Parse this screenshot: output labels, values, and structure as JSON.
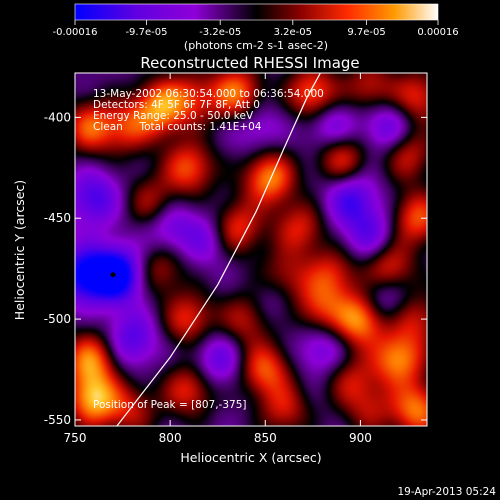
{
  "chart_data": {
    "type": "heatmap",
    "title": "Reconstructed RHESSI Image",
    "xlabel": "Heliocentric X (arcsec)",
    "ylabel": "Heliocentric Y (arcsec)",
    "xlim": [
      750,
      935
    ],
    "ylim": [
      -553,
      -378
    ],
    "x_ticks": [
      "750",
      "800",
      "850",
      "900"
    ],
    "x_tick_values": [
      750,
      800,
      850,
      900
    ],
    "y_ticks": [
      "-400",
      "-450",
      "-500",
      "-550"
    ],
    "y_tick_values": [
      -400,
      -450,
      -500,
      -550
    ],
    "colorbar": {
      "range": [
        -0.00016,
        0.00016
      ],
      "tick_labels": [
        "-0.00016",
        "-9.7e-05",
        "-3.2e-05",
        "3.2e-05",
        "9.7e-05",
        "0.00016"
      ],
      "tick_values": [
        -0.00016,
        -9.7e-05,
        -3.2e-05,
        3.2e-05,
        9.7e-05,
        0.00016
      ],
      "unit_label": "(photons cm-2 s-1 asec-2)",
      "colors": [
        "#0000ff",
        "#8f00d8",
        "#000000",
        "#8a0000",
        "#ff2a00",
        "#ff9a00",
        "#ffffff"
      ]
    },
    "annotations": [
      "13-May-2002 06:30:54.000 to 06:36:54.000",
      "Detectors: 4F 5F 6F 7F 8F, Att 0",
      "Energy Range: 25.0 - 50.0 keV",
      "Clean     Total counts: 1.41E+04",
      "Position of Peak = [807,-375]"
    ],
    "footer": "19-Apr-2013 05:24",
    "limb_curve": [
      [
        772,
        -553
      ],
      [
        800,
        -519
      ],
      [
        825,
        -483
      ],
      [
        845,
        -447
      ],
      [
        860,
        -415
      ],
      [
        872,
        -390
      ],
      [
        879,
        -378
      ]
    ],
    "marker": [
      770,
      -478
    ],
    "blobs": [
      [
        758,
        -405,
        0.7
      ],
      [
        778,
        -405,
        0.55
      ],
      [
        795,
        -395,
        0.85
      ],
      [
        812,
        -390,
        0.5
      ],
      [
        835,
        -388,
        0.8
      ],
      [
        875,
        -388,
        0.75
      ],
      [
        905,
        -385,
        0.5
      ],
      [
        930,
        -390,
        0.6
      ],
      [
        810,
        -425,
        0.7
      ],
      [
        852,
        -430,
        0.85
      ],
      [
        890,
        -420,
        0.65
      ],
      [
        925,
        -418,
        0.55
      ],
      [
        760,
        -440,
        -0.55
      ],
      [
        790,
        -442,
        0.45
      ],
      [
        835,
        -455,
        0.65
      ],
      [
        868,
        -455,
        0.55
      ],
      [
        930,
        -450,
        0.7
      ],
      [
        860,
        -480,
        0.5
      ],
      [
        885,
        -478,
        0.55
      ],
      [
        915,
        -475,
        0.65
      ],
      [
        795,
        -475,
        0.45
      ],
      [
        810,
        -500,
        0.6
      ],
      [
        840,
        -500,
        0.5
      ],
      [
        878,
        -495,
        0.55
      ],
      [
        900,
        -500,
        0.95
      ],
      [
        930,
        -500,
        0.5
      ],
      [
        772,
        -478,
        -1.0
      ],
      [
        755,
        -478,
        -0.8
      ],
      [
        758,
        -520,
        0.8
      ],
      [
        760,
        -540,
        0.95
      ],
      [
        780,
        -545,
        0.45
      ],
      [
        810,
        -535,
        0.6
      ],
      [
        850,
        -525,
        0.7
      ],
      [
        860,
        -545,
        0.5
      ],
      [
        895,
        -530,
        0.45
      ],
      [
        920,
        -520,
        0.85
      ],
      [
        930,
        -545,
        0.8
      ],
      [
        905,
        -545,
        0.4
      ],
      [
        885,
        -405,
        -0.45
      ],
      [
        915,
        -405,
        -0.5
      ],
      [
        895,
        -440,
        -0.55
      ],
      [
        905,
        -458,
        -0.45
      ],
      [
        845,
        -405,
        -0.3
      ],
      [
        820,
        -460,
        -0.35
      ],
      [
        800,
        -455,
        -0.4
      ],
      [
        825,
        -520,
        -0.45
      ],
      [
        880,
        -515,
        -0.4
      ],
      [
        780,
        -510,
        -0.5
      ],
      [
        855,
        -490,
        -0.3
      ],
      [
        912,
        -490,
        -0.45
      ]
    ]
  }
}
